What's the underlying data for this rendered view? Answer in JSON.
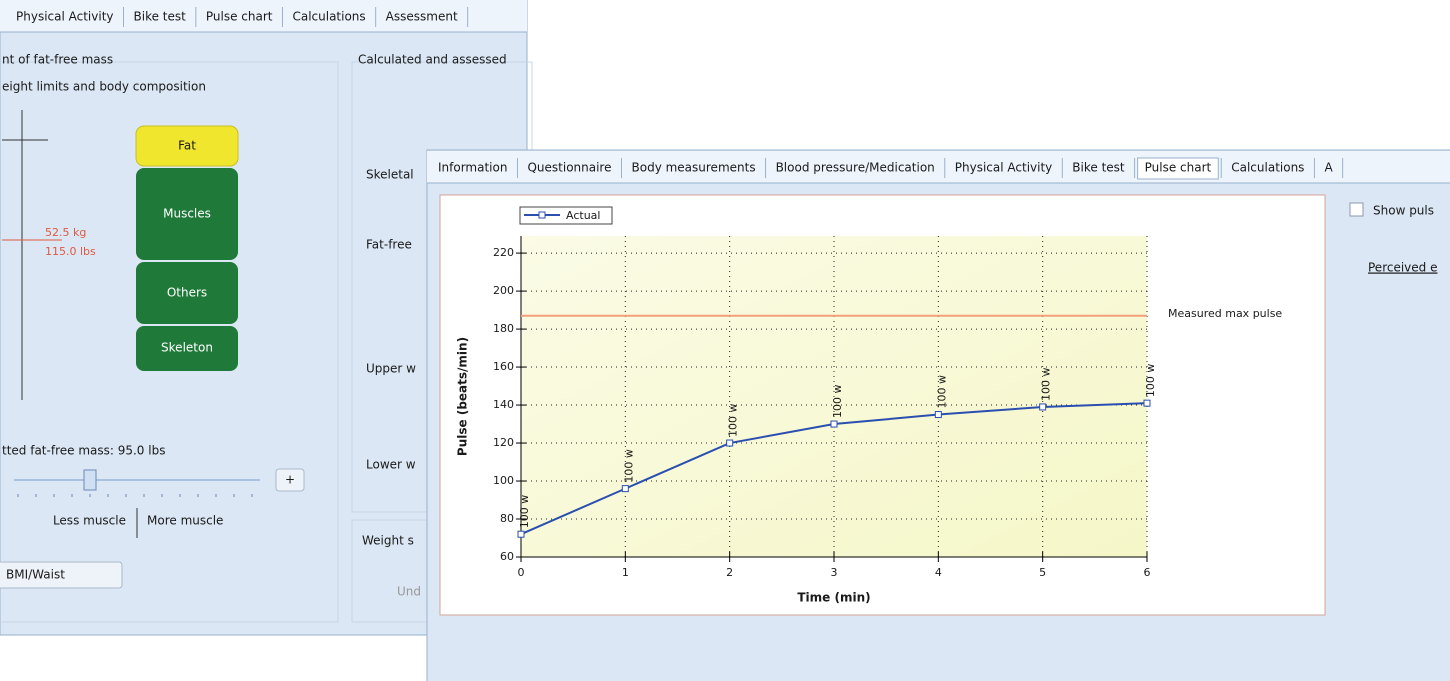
{
  "back_window": {
    "tabs": [
      "Physical Activity",
      "Bike test",
      "Pulse chart",
      "Calculations",
      "Assessment"
    ],
    "section_title": "nt of fat-free mass",
    "subtitle": "eight limits and body composition",
    "body_parts": [
      "Fat",
      "Muscles",
      "Others",
      "Skeleton"
    ],
    "weight_labels": [
      "52.5 kg",
      "115.0 lbs"
    ],
    "adjusted_mass": "tted fat-free mass: 95.0 lbs",
    "plus_button": "+",
    "less_muscle": "Less muscle",
    "more_muscle": "More muscle",
    "button": "BMI/Waist",
    "right_title": "Calculated and assessed",
    "right_labels": [
      "Skeletal",
      "Fat-free",
      "Upper w",
      "Lower w"
    ],
    "weight_section": "Weight s",
    "weight_section_text": "Und"
  },
  "front_window": {
    "tabs": [
      "Information",
      "Questionnaire",
      "Body measurements",
      "Blood pressure/Medication",
      "Physical Activity",
      "Bike test",
      "Pulse chart",
      "Calculations",
      "A"
    ],
    "selected_tab": 6,
    "checkbox_label": "Show puls",
    "link": "Perceived e"
  },
  "chart_data": {
    "type": "line",
    "x_label": "Time (min)",
    "y_label": "Pulse (beats/min)",
    "x": [
      0,
      1,
      2,
      3,
      4,
      5,
      6
    ],
    "series": [
      {
        "name": "Actual",
        "color": "#2a4fb0",
        "values": [
          72,
          96,
          120,
          130,
          135,
          139,
          141
        ]
      }
    ],
    "point_labels": [
      "100 w",
      "100 w",
      "100 w",
      "100 w",
      "100 w",
      "100 w",
      "100 w"
    ],
    "reference_line": {
      "value": 187,
      "label": "Measured max pulse",
      "color": "#f4a07a"
    },
    "xlim": [
      0,
      6
    ],
    "xticks": [
      0,
      1,
      2,
      3,
      4,
      5,
      6
    ],
    "ylim": [
      60,
      229
    ],
    "yticks": [
      60,
      80,
      100,
      120,
      140,
      160,
      180,
      200,
      220
    ],
    "grid": true,
    "legend": "top-left"
  }
}
